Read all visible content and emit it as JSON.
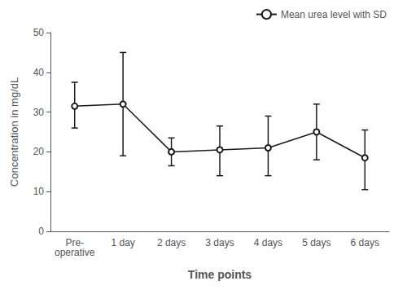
{
  "chart_data": {
    "type": "line",
    "categories": [
      "Pre-\noperative",
      "1 day",
      "2 days",
      "3 days",
      "4 days",
      "5 days",
      "6 days"
    ],
    "series": [
      {
        "name": "Mean urea level with SD",
        "color": "#1a1a1a",
        "values": [
          31.5,
          32.0,
          20.0,
          20.5,
          21.0,
          25.0,
          18.5
        ],
        "errors_upper": [
          6.0,
          13.0,
          3.5,
          6.0,
          8.0,
          7.0,
          7.0
        ],
        "errors_lower": [
          5.5,
          13.0,
          3.5,
          6.5,
          7.0,
          7.0,
          8.0
        ],
        "marker": "circle",
        "line_style": "solid"
      }
    ],
    "xlabel": "Time points",
    "ylabel": "Concentration in mg/dL",
    "ylim": [
      0,
      50
    ],
    "yticks": [
      0,
      10,
      20,
      30,
      40,
      50
    ],
    "grid": false,
    "legend": "upper right"
  }
}
